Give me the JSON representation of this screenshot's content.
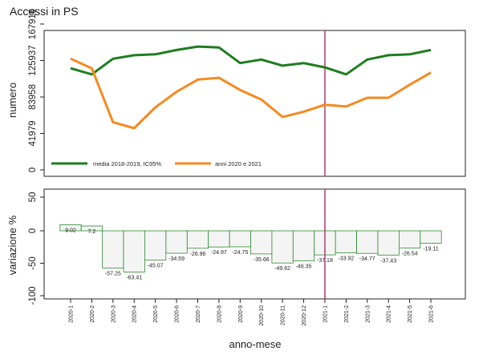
{
  "title": "Accessi in PS",
  "chart_data": [
    {
      "type": "line",
      "ylabel": "numero",
      "ylim": [
        0,
        167916
      ],
      "yticks": [
        0,
        41979,
        83958,
        125937,
        167916
      ],
      "ytick_labels": [
        "0",
        "41979",
        "83958",
        "125937",
        "167916"
      ],
      "vline_category": "2021-1",
      "vline_color": "#b03a6e",
      "legend_position": "bottom-left",
      "categories": [
        "2020-1",
        "2020-2",
        "2020-3",
        "2020-4",
        "2020-5",
        "2020-6",
        "2020-7",
        "2020-8",
        "2020-9",
        "2020-10",
        "2020-11",
        "2020-12",
        "2021-1",
        "2021-2",
        "2021-3",
        "2021-4",
        "2021-5",
        "2021-6"
      ],
      "series": [
        {
          "name": "media 2018-2019, IC95%",
          "color": "#1e7d1e",
          "values": [
            117000,
            110000,
            128000,
            132000,
            133000,
            138000,
            142000,
            141000,
            123000,
            127000,
            120000,
            123000,
            118000,
            110000,
            127000,
            132000,
            133000,
            138000
          ]
        },
        {
          "name": "anni 2020 e 2021",
          "color": "#f58a1f",
          "values": [
            128000,
            117000,
            55000,
            48000,
            72000,
            90000,
            104000,
            106000,
            92000,
            81000,
            61000,
            67000,
            75000,
            73000,
            83000,
            83000,
            98000,
            112000
          ]
        }
      ]
    },
    {
      "type": "bar",
      "xlabel": "anno-mese",
      "ylabel": "variazione %",
      "ylim": [
        -100,
        50
      ],
      "yticks": [
        -100,
        -50,
        0,
        50
      ],
      "ytick_labels": [
        "-100",
        "-50",
        "0",
        "50"
      ],
      "vline_category": "2021-1",
      "bar_fill": "#f4f4f4",
      "bar_stroke": "#2e8b2e",
      "categories": [
        "2020-1",
        "2020-2",
        "2020-3",
        "2020-4",
        "2020-5",
        "2020-6",
        "2020-7",
        "2020-8",
        "2020-9",
        "2020-10",
        "2020-11",
        "2020-12",
        "2021-1",
        "2021-2",
        "2021-3",
        "2021-4",
        "2021-5",
        "2021-6"
      ],
      "values": [
        9.02,
        7.2,
        -57.25,
        -63.41,
        -45.07,
        -34.59,
        -26.96,
        -24.97,
        -24.75,
        -35.66,
        -49.62,
        -46.35,
        -37.18,
        -33.92,
        -34.77,
        -37.43,
        -26.54,
        -19.11
      ],
      "labels": [
        "9.02",
        "7.2",
        "-57.25",
        "-63.41",
        "-45.07",
        "-34.59",
        "-26.96",
        "-24.97",
        "-24.75",
        "-35.66",
        "-49.62",
        "-46.35",
        "-37.18",
        "-33.92",
        "-34.77",
        "-37.43",
        "-26.54",
        "-19.11"
      ]
    }
  ]
}
